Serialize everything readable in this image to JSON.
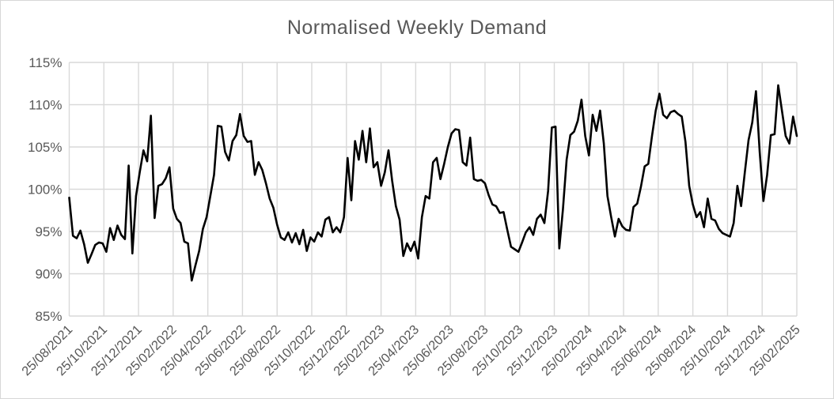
{
  "theme": {
    "line_color": "#000000",
    "grid_color": "#d9d9d9",
    "label_color": "#595959",
    "background": "#ffffff",
    "border_color": "#d7d7d7"
  },
  "chart_data": {
    "type": "line",
    "title": "Normalised Weekly Demand",
    "xlabel": "",
    "ylabel": "",
    "ylim": [
      85,
      115
    ],
    "y_step": 5,
    "grid": true,
    "legend": false,
    "x_frequency": "weekly",
    "y_tick_labels": [
      "115%",
      "110%",
      "105%",
      "100%",
      "95%",
      "90%",
      "85%"
    ],
    "x_tick_labels": [
      "25/08/2021",
      "25/10/2021",
      "25/12/2021",
      "25/02/2022",
      "25/04/2022",
      "25/06/2022",
      "25/08/2022",
      "25/10/2022",
      "25/12/2022",
      "25/02/2023",
      "25/04/2023",
      "25/06/2023",
      "25/08/2023",
      "25/10/2023",
      "25/12/2023",
      "25/02/2024",
      "25/04/2024",
      "25/06/2024",
      "25/08/2024",
      "25/10/2024",
      "25/12/2024",
      "25/02/2025"
    ],
    "series": [
      {
        "name": "Normalised Weekly Demand",
        "unit": "percent",
        "values": [
          99.0,
          94.5,
          94.2,
          95.1,
          93.5,
          91.3,
          92.3,
          93.4,
          93.7,
          93.6,
          92.6,
          95.4,
          94.0,
          95.7,
          94.6,
          94.1,
          102.8,
          92.4,
          99.2,
          102.0,
          104.6,
          103.3,
          108.7,
          96.6,
          100.4,
          100.6,
          101.3,
          102.6,
          97.7,
          96.5,
          96.0,
          93.8,
          93.6,
          89.2,
          91.0,
          92.7,
          95.3,
          96.7,
          99.2,
          101.7,
          107.5,
          107.4,
          104.4,
          103.4,
          105.7,
          106.4,
          108.9,
          106.3,
          105.6,
          105.7,
          101.7,
          103.2,
          102.3,
          100.7,
          98.9,
          97.8,
          95.8,
          94.3,
          94.0,
          94.9,
          93.7,
          94.8,
          93.5,
          95.2,
          92.7,
          94.3,
          93.8,
          94.9,
          94.4,
          96.4,
          96.7,
          94.9,
          95.5,
          94.9,
          96.7,
          103.7,
          98.7,
          105.7,
          103.5,
          106.9,
          103.2,
          107.2,
          102.6,
          103.2,
          100.4,
          102.0,
          104.6,
          101.0,
          98.0,
          96.4,
          92.1,
          93.6,
          92.7,
          93.8,
          91.8,
          96.7,
          99.2,
          98.9,
          103.2,
          103.7,
          101.2,
          103.0,
          105.0,
          106.6,
          107.1,
          107.0,
          103.2,
          102.8,
          106.1,
          101.2,
          101.0,
          101.1,
          100.7,
          99.3,
          98.2,
          98.0,
          97.2,
          97.3,
          95.2,
          93.2,
          92.9,
          92.6,
          93.7,
          94.9,
          95.5,
          94.6,
          96.5,
          97.0,
          96.0,
          99.8,
          107.3,
          107.4,
          93.0,
          97.6,
          103.5,
          106.4,
          106.8,
          108.1,
          110.6,
          106.3,
          104.0,
          108.8,
          106.9,
          109.3,
          105.4,
          99.2,
          96.7,
          94.4,
          96.5,
          95.6,
          95.2,
          95.1,
          97.9,
          98.3,
          100.3,
          102.7,
          103.0,
          106.3,
          109.3,
          111.3,
          108.8,
          108.4,
          109.1,
          109.3,
          108.9,
          108.6,
          105.6,
          100.4,
          98.2,
          96.7,
          97.3,
          95.5,
          98.9,
          96.5,
          96.3,
          95.3,
          94.8,
          94.6,
          94.4,
          96.0,
          100.4,
          98.0,
          102.0,
          105.8,
          107.9,
          111.6,
          104.4,
          98.6,
          101.7,
          106.4,
          106.5,
          112.3,
          109.3,
          106.3,
          105.4,
          108.6,
          106.3
        ]
      }
    ]
  }
}
